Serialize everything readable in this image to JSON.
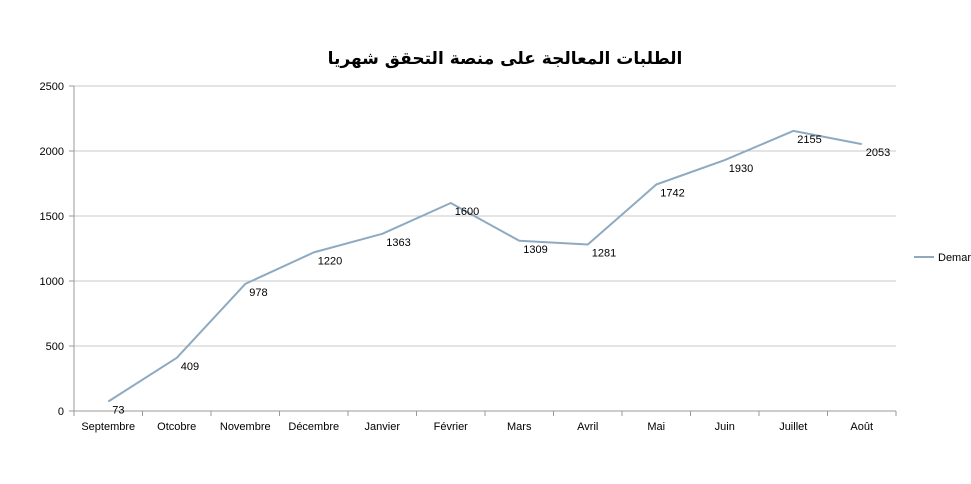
{
  "chart_data": {
    "type": "line",
    "title": "الطلبات المعالجة على منصة التحقق شهريا",
    "categories": [
      "Septembre",
      "Otcobre",
      "Novembre",
      "Décembre",
      "Janvier",
      "Février",
      "Mars",
      "Avril",
      "Mai",
      "Juin",
      "Juillet",
      "Août"
    ],
    "series": [
      {
        "name": "Demar",
        "values": [
          73,
          409,
          978,
          1220,
          1363,
          1600,
          1309,
          1281,
          1742,
          1930,
          2155,
          2053
        ],
        "color": "#8eaac1"
      }
    ],
    "ylim": [
      0,
      2500
    ],
    "yticks": [
      0,
      500,
      1000,
      1500,
      2000,
      2500
    ],
    "grid": true,
    "legend": "right"
  }
}
